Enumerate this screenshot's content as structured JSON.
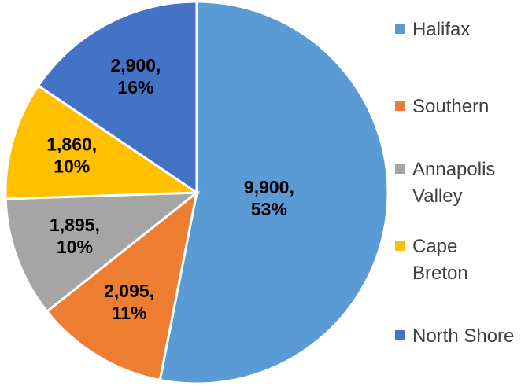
{
  "chart_data": {
    "type": "pie",
    "categories": [
      "Halifax",
      "Southern",
      "Annapolis Valley",
      "Cape Breton",
      "North Shore"
    ],
    "values": [
      9900,
      2095,
      1895,
      1860,
      2900
    ],
    "value_labels": [
      "9,900, 53%",
      "2,095, 11%",
      "1,895, 10%",
      "1,860, 10%",
      "2,900, 16%"
    ],
    "colors": [
      "#5b9bd5",
      "#ed7d31",
      "#a5a5a5",
      "#ffc000",
      "#4472c4"
    ],
    "legend": "right"
  }
}
